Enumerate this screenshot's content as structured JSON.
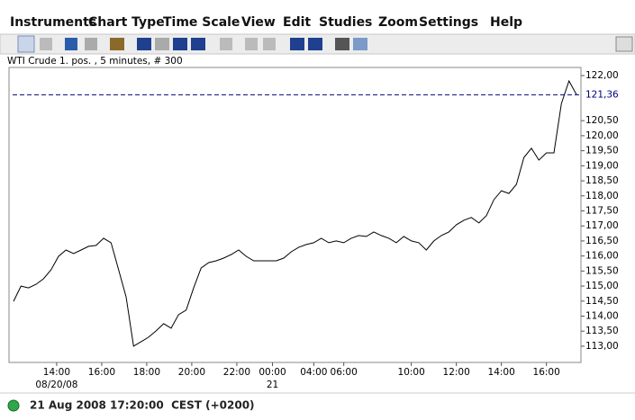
{
  "menu": [
    "Instruments",
    "Chart Type",
    "Time Scale",
    "View",
    "Edit",
    "Studies",
    "Zoom",
    "Settings",
    "Help"
  ],
  "chart_info": "WTI Crude 1. pos. , 5 minutes, # 300",
  "status": "21 Aug 2008 17:20:00  CEST (+0200)",
  "chart_data": {
    "type": "line",
    "color": "#000000",
    "x": [
      0,
      4,
      8,
      12,
      16,
      20,
      24,
      28,
      32,
      36,
      40,
      44,
      48,
      52,
      56,
      60,
      64,
      68,
      72,
      76,
      80,
      84,
      88,
      92,
      96,
      100,
      104,
      108,
      112,
      116,
      120,
      124,
      128,
      132,
      136,
      140,
      144,
      148,
      152,
      156,
      160,
      164,
      168,
      172,
      176,
      180,
      184,
      188,
      192,
      196,
      200,
      204,
      208,
      212,
      216,
      220,
      224,
      228,
      232,
      236,
      240,
      244,
      248,
      252,
      256,
      260,
      264,
      268,
      272,
      276,
      280,
      284,
      288,
      292,
      296,
      300
    ],
    "values": [
      114.49,
      115.0,
      114.94,
      115.06,
      115.24,
      115.54,
      115.99,
      116.2,
      116.08,
      116.2,
      116.32,
      116.35,
      116.59,
      116.44,
      115.54,
      114.64,
      113.0,
      113.15,
      113.3,
      113.51,
      113.75,
      113.6,
      114.05,
      114.2,
      114.94,
      115.6,
      115.78,
      115.84,
      115.93,
      116.05,
      116.2,
      115.99,
      115.84,
      115.84,
      115.84,
      115.84,
      115.93,
      116.14,
      116.29,
      116.38,
      116.44,
      116.59,
      116.44,
      116.5,
      116.44,
      116.59,
      116.68,
      116.65,
      116.8,
      116.68,
      116.59,
      116.44,
      116.65,
      116.5,
      116.44,
      116.2,
      116.5,
      116.68,
      116.8,
      117.04,
      117.19,
      117.28,
      117.1,
      117.34,
      117.87,
      118.17,
      118.08,
      118.38,
      119.28,
      119.58,
      119.19,
      119.43,
      119.43,
      121.07,
      121.82,
      121.37
    ],
    "xlim": [
      -2.4,
      302.4
    ],
    "xticks": [
      {
        "value": 23,
        "label": "14:00"
      },
      {
        "value": 47,
        "label": "16:00"
      },
      {
        "value": 71,
        "label": "18:00"
      },
      {
        "value": 95,
        "label": "20:00"
      },
      {
        "value": 119,
        "label": "22:00"
      },
      {
        "value": 138,
        "label": "00:00"
      },
      {
        "value": 160,
        "label": "04:00"
      },
      {
        "value": 176,
        "label": "06:00"
      },
      {
        "value": 212,
        "label": "10:00"
      },
      {
        "value": 236,
        "label": "12:00"
      },
      {
        "value": 260,
        "label": "14:00"
      },
      {
        "value": 284,
        "label": "16:00"
      }
    ],
    "xticks_secondary": [
      {
        "value": 23,
        "label": "08/20/08"
      },
      {
        "value": 138,
        "label": "21"
      }
    ],
    "ylim": [
      112.46,
      122.27
    ],
    "yticks": [
      {
        "value": 113,
        "label": "113,00"
      },
      {
        "value": 113.5,
        "label": "113,50"
      },
      {
        "value": 114,
        "label": "114,00"
      },
      {
        "value": 114.5,
        "label": "114,50"
      },
      {
        "value": 115,
        "label": "115,00"
      },
      {
        "value": 115.5,
        "label": "115,50"
      },
      {
        "value": 116,
        "label": "116,00"
      },
      {
        "value": 116.5,
        "label": "116,50"
      },
      {
        "value": 117,
        "label": "117,00"
      },
      {
        "value": 117.5,
        "label": "117,50"
      },
      {
        "value": 118,
        "label": "118,00"
      },
      {
        "value": 118.5,
        "label": "118,50"
      },
      {
        "value": 119,
        "label": "119,00"
      },
      {
        "value": 119.5,
        "label": "119,50"
      },
      {
        "value": 120,
        "label": "120,00"
      },
      {
        "value": 120.5,
        "label": "120,50"
      },
      {
        "value": 122,
        "label": "122,00"
      }
    ],
    "last_price": {
      "value": 121.36,
      "label": "121,36",
      "color": "#000080"
    }
  }
}
